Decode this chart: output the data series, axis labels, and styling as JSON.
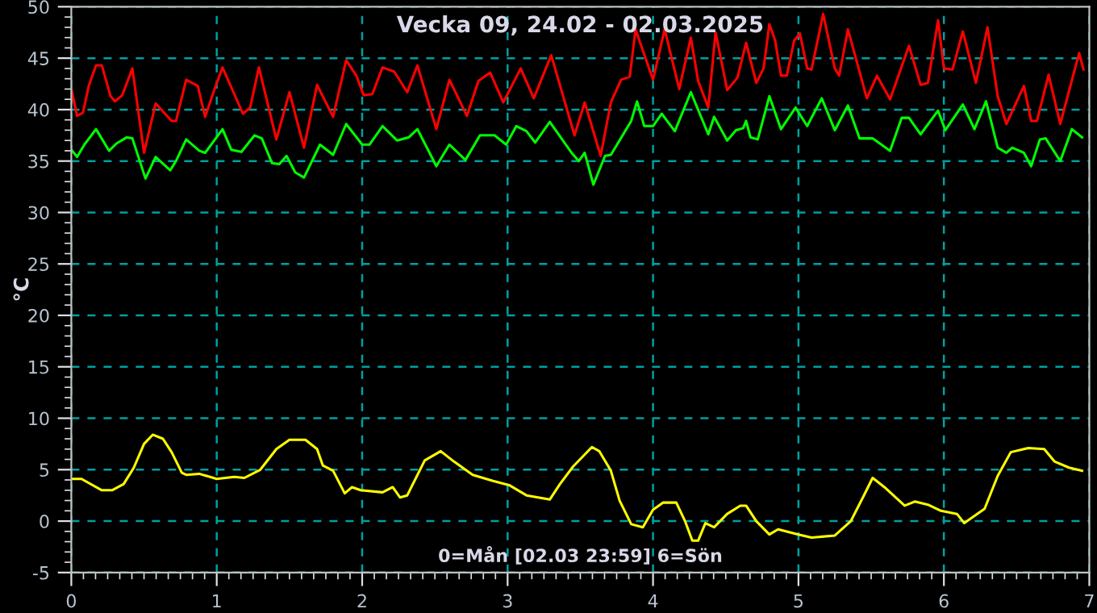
{
  "chart_data": {
    "type": "line",
    "title": "Vecka 09, 24.02 - 02.03.2025",
    "xlabel": "0=Mån [02.03 23:59] 6=Sön",
    "ylabel": "°C",
    "xlim": [
      0,
      7
    ],
    "xticks": [
      0,
      1,
      2,
      3,
      4,
      5,
      6,
      7
    ],
    "ylim": [
      -5,
      50
    ],
    "yticks": [
      -5,
      0,
      5,
      10,
      15,
      20,
      25,
      30,
      35,
      40,
      45,
      50
    ],
    "grid": true,
    "marker": "none",
    "line_style": "solid",
    "series": [
      {
        "color": "#ff0000",
        "x": [
          0.0,
          0.04,
          0.08,
          0.12,
          0.17,
          0.21,
          0.27,
          0.3,
          0.35,
          0.42,
          0.5,
          0.58,
          0.69,
          0.72,
          0.79,
          0.87,
          0.92,
          0.98,
          1.04,
          1.18,
          1.23,
          1.29,
          1.41,
          1.5,
          1.6,
          1.69,
          1.8,
          1.89,
          1.96,
          2.01,
          2.07,
          2.14,
          2.22,
          2.31,
          2.38,
          2.51,
          2.6,
          2.72,
          2.8,
          2.88,
          2.97,
          3.09,
          3.18,
          3.3,
          3.46,
          3.53,
          3.64,
          3.71,
          3.78,
          3.84,
          3.88,
          4.0,
          4.08,
          4.18,
          4.26,
          4.31,
          4.38,
          4.43,
          4.51,
          4.58,
          4.64,
          4.71,
          4.76,
          4.8,
          4.84,
          4.88,
          4.92,
          4.97,
          5.01,
          5.06,
          5.09,
          5.17,
          5.25,
          5.28,
          5.34,
          5.47,
          5.54,
          5.63,
          5.76,
          5.84,
          5.89,
          5.96,
          6.0,
          6.06,
          6.13,
          6.22,
          6.3,
          6.37,
          6.43,
          6.55,
          6.6,
          6.64,
          6.72,
          6.8,
          6.93,
          6.96
        ],
        "values": [
          42.0,
          39.4,
          39.7,
          42.3,
          44.3,
          44.3,
          41.3,
          40.8,
          41.4,
          44.0,
          35.8,
          40.6,
          38.9,
          38.9,
          42.9,
          42.3,
          39.3,
          41.8,
          44.1,
          39.6,
          40.2,
          44.1,
          37.1,
          41.7,
          36.3,
          42.4,
          39.3,
          44.8,
          43.3,
          41.4,
          41.5,
          44.1,
          43.7,
          41.7,
          44.3,
          38.1,
          42.9,
          39.4,
          42.8,
          43.6,
          40.7,
          44.0,
          41.1,
          45.3,
          37.5,
          40.7,
          35.5,
          40.7,
          42.9,
          43.2,
          47.8,
          42.9,
          47.8,
          42.0,
          47.0,
          42.8,
          40.2,
          47.5,
          41.9,
          43.1,
          46.5,
          42.6,
          44.0,
          48.3,
          46.7,
          43.3,
          43.3,
          46.7,
          47.4,
          44.0,
          43.9,
          49.3,
          44.0,
          43.3,
          47.8,
          41.1,
          43.3,
          41.0,
          46.2,
          42.4,
          42.6,
          48.7,
          44.0,
          43.9,
          47.6,
          42.6,
          48.0,
          41.3,
          38.6,
          42.3,
          38.9,
          38.9,
          43.4,
          38.6,
          45.5,
          43.9
        ]
      },
      {
        "color": "#00ff00",
        "x": [
          0.0,
          0.04,
          0.09,
          0.17,
          0.26,
          0.31,
          0.38,
          0.42,
          0.51,
          0.58,
          0.68,
          0.72,
          0.79,
          0.88,
          0.92,
          1.04,
          1.1,
          1.17,
          1.26,
          1.31,
          1.38,
          1.43,
          1.48,
          1.54,
          1.6,
          1.71,
          1.8,
          1.89,
          2.0,
          2.05,
          2.14,
          2.24,
          2.32,
          2.38,
          2.51,
          2.6,
          2.71,
          2.81,
          2.91,
          2.99,
          3.06,
          3.13,
          3.19,
          3.29,
          3.44,
          3.49,
          3.53,
          3.59,
          3.67,
          3.71,
          3.85,
          3.89,
          3.94,
          4.0,
          4.06,
          4.15,
          4.26,
          4.38,
          4.42,
          4.51,
          4.57,
          4.62,
          4.64,
          4.67,
          4.72,
          4.8,
          4.88,
          4.98,
          5.06,
          5.16,
          5.25,
          5.34,
          5.42,
          5.51,
          5.63,
          5.71,
          5.76,
          5.84,
          5.96,
          6.01,
          6.13,
          6.21,
          6.29,
          6.37,
          6.43,
          6.47,
          6.55,
          6.6,
          6.66,
          6.7,
          6.8,
          6.88,
          6.95
        ],
        "values": [
          36.1,
          35.4,
          36.6,
          38.1,
          36.0,
          36.7,
          37.3,
          37.2,
          33.3,
          35.4,
          34.1,
          35.0,
          37.1,
          36.0,
          35.8,
          38.1,
          36.1,
          35.9,
          37.5,
          37.2,
          34.8,
          34.7,
          35.5,
          33.9,
          33.4,
          36.6,
          35.6,
          38.6,
          36.6,
          36.6,
          38.4,
          37.0,
          37.3,
          38.1,
          34.5,
          36.6,
          35.1,
          37.5,
          37.5,
          36.6,
          38.4,
          37.9,
          36.8,
          38.8,
          35.8,
          35.0,
          35.8,
          32.7,
          35.5,
          35.6,
          38.9,
          40.8,
          38.4,
          38.4,
          39.6,
          37.9,
          41.7,
          37.6,
          39.3,
          37.0,
          38.0,
          38.2,
          38.9,
          37.3,
          37.1,
          41.3,
          38.1,
          40.2,
          38.4,
          41.1,
          38.0,
          40.4,
          37.2,
          37.2,
          36.0,
          39.2,
          39.2,
          37.6,
          39.9,
          38.0,
          40.5,
          38.1,
          40.8,
          36.3,
          35.8,
          36.3,
          35.8,
          34.5,
          37.1,
          37.2,
          35.0,
          38.1,
          37.3
        ]
      },
      {
        "color": "#ffff00",
        "x": [
          0.0,
          0.07,
          0.21,
          0.28,
          0.36,
          0.43,
          0.5,
          0.56,
          0.63,
          0.69,
          0.76,
          0.79,
          0.88,
          1.0,
          1.12,
          1.19,
          1.3,
          1.41,
          1.5,
          1.61,
          1.69,
          1.73,
          1.8,
          1.88,
          1.93,
          1.99,
          2.14,
          2.21,
          2.26,
          2.31,
          2.43,
          2.54,
          2.63,
          2.76,
          2.9,
          3.01,
          3.13,
          3.29,
          3.36,
          3.45,
          3.58,
          3.63,
          3.71,
          3.77,
          3.85,
          3.93,
          4.0,
          4.07,
          4.16,
          4.22,
          4.27,
          4.31,
          4.36,
          4.42,
          4.51,
          4.6,
          4.64,
          4.71,
          4.8,
          4.86,
          5.0,
          5.09,
          5.25,
          5.36,
          5.45,
          5.51,
          5.6,
          5.73,
          5.8,
          5.89,
          5.98,
          6.09,
          6.14,
          6.28,
          6.37,
          6.46,
          6.58,
          6.69,
          6.76,
          6.86,
          6.95
        ],
        "values": [
          4.1,
          4.1,
          3.0,
          3.0,
          3.6,
          5.2,
          7.5,
          8.4,
          8.0,
          6.7,
          4.7,
          4.5,
          4.6,
          4.1,
          4.3,
          4.2,
          5.0,
          7.0,
          7.9,
          7.9,
          7.0,
          5.4,
          4.9,
          2.7,
          3.3,
          3.0,
          2.8,
          3.3,
          2.3,
          2.5,
          5.9,
          6.8,
          5.8,
          4.5,
          3.9,
          3.5,
          2.5,
          2.1,
          3.6,
          5.3,
          7.2,
          6.8,
          4.9,
          2.0,
          -0.3,
          -0.6,
          1.1,
          1.8,
          1.8,
          0.0,
          -1.9,
          -1.9,
          -0.2,
          -0.6,
          0.7,
          1.5,
          1.5,
          0.0,
          -1.3,
          -0.8,
          -1.3,
          -1.6,
          -1.4,
          0.0,
          2.5,
          4.2,
          3.2,
          1.5,
          1.9,
          1.6,
          1.0,
          0.7,
          -0.2,
          1.2,
          4.4,
          6.7,
          7.1,
          7.0,
          5.8,
          5.2,
          4.9
        ]
      }
    ]
  }
}
